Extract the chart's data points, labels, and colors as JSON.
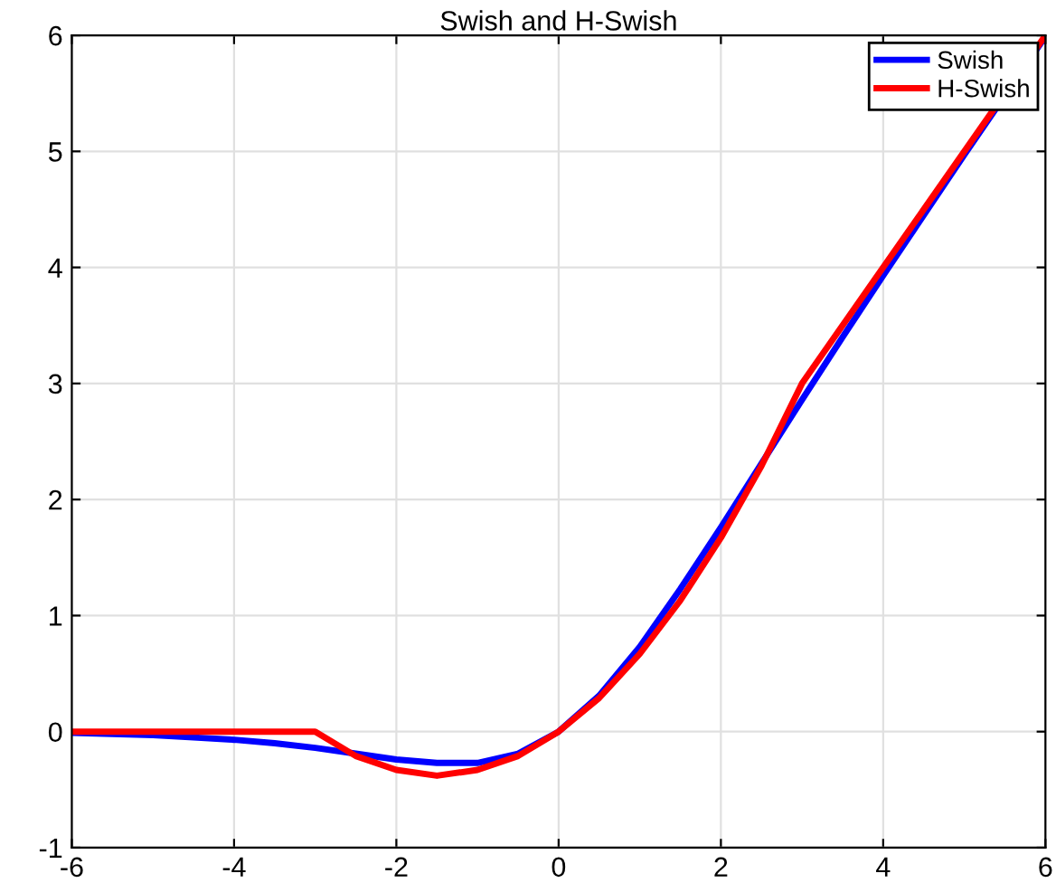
{
  "chart_data": {
    "type": "line",
    "title": "Swish and H-Swish",
    "xlim": [
      -6,
      6
    ],
    "xticks": [
      -6,
      -4,
      -2,
      0,
      2,
      4,
      6
    ],
    "ylim": [
      -1,
      6
    ],
    "yticks": [
      -1,
      0,
      1,
      2,
      3,
      4,
      5,
      6
    ],
    "grid": true,
    "legend": "top right",
    "marker": "none",
    "line_style": "solid",
    "series": [
      {
        "name": "Swish",
        "color": "#0000ff",
        "x": [
          -6,
          -5.5,
          -5,
          -4.5,
          -4,
          -3.5,
          -3,
          -2.5,
          -2,
          -1.5,
          -1,
          -0.5,
          0,
          0.5,
          1,
          1.5,
          2,
          2.5,
          3,
          3.5,
          4,
          4.5,
          5,
          6
        ],
        "values": [
          -0.01,
          -0.02,
          -0.03,
          -0.05,
          -0.07,
          -0.1,
          -0.14,
          -0.19,
          -0.24,
          -0.27,
          -0.27,
          -0.19,
          0,
          0.31,
          0.73,
          1.23,
          1.76,
          2.31,
          2.86,
          3.4,
          3.93,
          4.45,
          4.97,
          5.99
        ]
      },
      {
        "name": "H-Swish",
        "color": "#ff0000",
        "x": [
          -6,
          -3,
          -2.5,
          -2,
          -1.5,
          -1,
          -0.5,
          0,
          0.5,
          1,
          1.5,
          2,
          2.5,
          3,
          6
        ],
        "values": [
          0,
          0,
          -0.21,
          -0.33,
          -0.38,
          -0.33,
          -0.21,
          0,
          0.29,
          0.67,
          1.13,
          1.67,
          2.29,
          3,
          6
        ]
      }
    ]
  }
}
